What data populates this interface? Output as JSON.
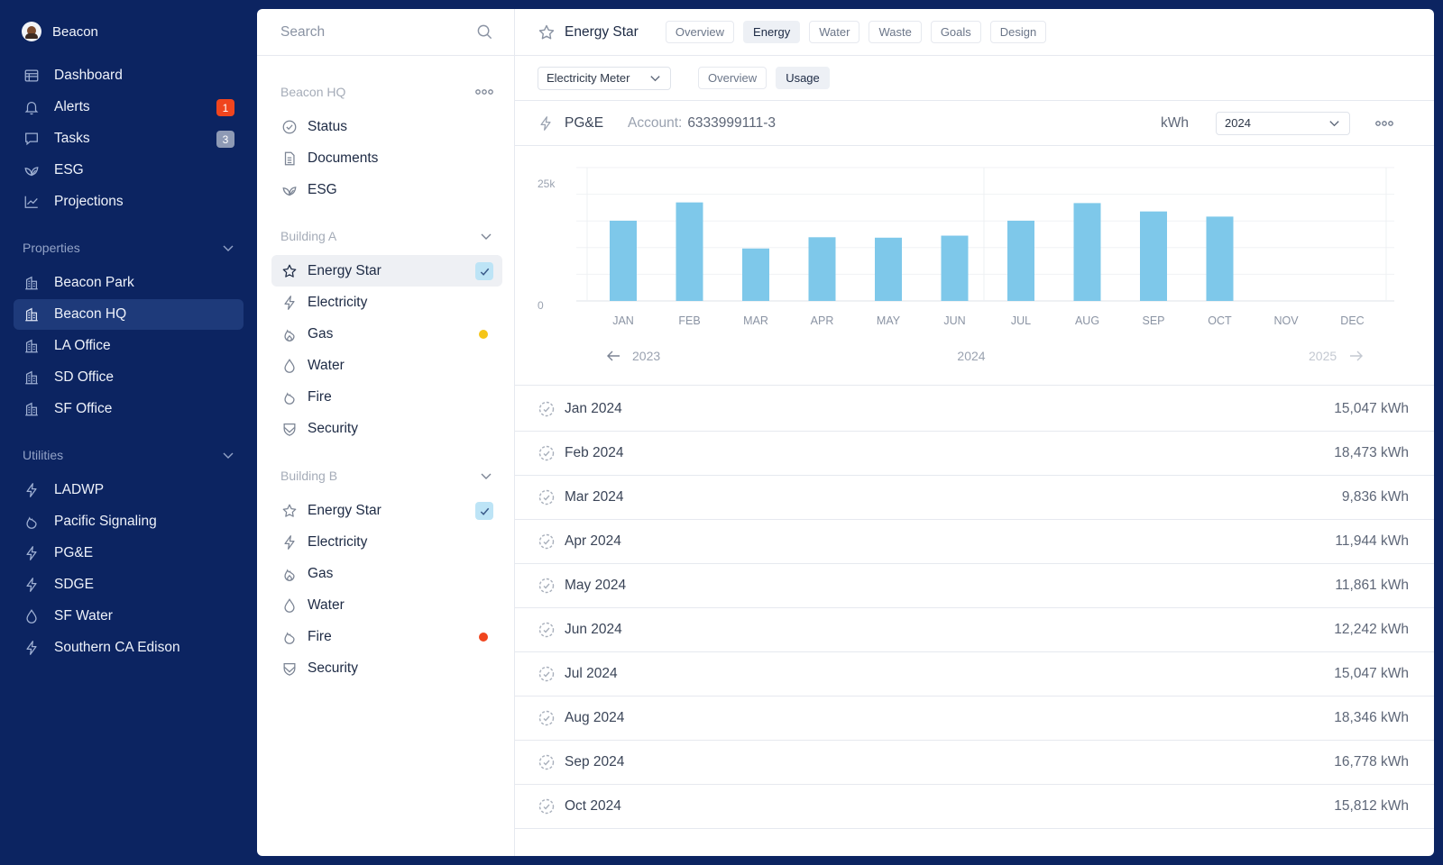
{
  "app": {
    "name": "Beacon"
  },
  "nav": {
    "items": [
      {
        "label": "Dashboard",
        "icon": "dashboard-icon"
      },
      {
        "label": "Alerts",
        "icon": "bell-icon",
        "badge": "1",
        "badge_color": "#f0451e"
      },
      {
        "label": "Tasks",
        "icon": "tasks-icon",
        "badge": "3",
        "badge_color": "#8e9ab5"
      },
      {
        "label": "ESG",
        "icon": "leaf-icon"
      },
      {
        "label": "Projections",
        "icon": "trend-icon"
      }
    ],
    "properties_label": "Properties",
    "properties": [
      {
        "label": "Beacon Park"
      },
      {
        "label": "Beacon HQ",
        "active": true
      },
      {
        "label": "LA Office"
      },
      {
        "label": "SD Office"
      },
      {
        "label": "SF Office"
      }
    ],
    "utilities_label": "Utilities",
    "utilities": [
      {
        "label": "LADWP",
        "icon": "bolt-icon"
      },
      {
        "label": "Pacific Signaling",
        "icon": "flame-icon"
      },
      {
        "label": "PG&E",
        "icon": "bolt-icon"
      },
      {
        "label": "SDGE",
        "icon": "bolt-icon"
      },
      {
        "label": "SF Water",
        "icon": "drop-icon"
      },
      {
        "label": "Southern CA Edison",
        "icon": "bolt-icon"
      }
    ]
  },
  "middle": {
    "search_placeholder": "Search",
    "hq": {
      "label": "Beacon HQ",
      "items": [
        {
          "label": "Status",
          "icon": "check-circle-icon"
        },
        {
          "label": "Documents",
          "icon": "document-icon"
        },
        {
          "label": "ESG",
          "icon": "leaf-icon"
        }
      ]
    },
    "building_a": {
      "label": "Building A",
      "items": [
        {
          "label": "Energy Star",
          "icon": "star-icon",
          "checked": true,
          "selected": true
        },
        {
          "label": "Electricity",
          "icon": "bolt-icon"
        },
        {
          "label": "Gas",
          "icon": "flame-icon",
          "dot": "#f5c518"
        },
        {
          "label": "Water",
          "icon": "drop-icon"
        },
        {
          "label": "Fire",
          "icon": "fire-icon"
        },
        {
          "label": "Security",
          "icon": "shield-icon"
        }
      ]
    },
    "building_b": {
      "label": "Building B",
      "items": [
        {
          "label": "Energy Star",
          "icon": "star-icon",
          "checked": true
        },
        {
          "label": "Electricity",
          "icon": "bolt-icon"
        },
        {
          "label": "Gas",
          "icon": "flame-icon"
        },
        {
          "label": "Water",
          "icon": "drop-icon"
        },
        {
          "label": "Fire",
          "icon": "fire-icon",
          "dot": "#f0451e"
        },
        {
          "label": "Security",
          "icon": "shield-icon"
        }
      ]
    }
  },
  "main": {
    "title": "Energy Star",
    "tabs": [
      {
        "label": "Overview"
      },
      {
        "label": "Energy",
        "active": true
      },
      {
        "label": "Water"
      },
      {
        "label": "Waste"
      },
      {
        "label": "Goals"
      },
      {
        "label": "Design"
      }
    ],
    "meter_select": "Electricity Meter",
    "subtabs": [
      {
        "label": "Overview"
      },
      {
        "label": "Usage",
        "active": true
      }
    ],
    "utility": "PG&E",
    "account_label": "Account:",
    "account_number": "6333999111-3",
    "unit": "kWh",
    "year_select": "2024",
    "prev_year": "2023",
    "current_year": "2024",
    "next_year": "2025"
  },
  "chart_data": {
    "type": "bar",
    "categories": [
      "JAN",
      "FEB",
      "MAR",
      "APR",
      "MAY",
      "JUN",
      "JUL",
      "AUG",
      "SEP",
      "OCT",
      "NOV",
      "DEC"
    ],
    "values": [
      15047,
      18473,
      9836,
      11944,
      11861,
      12242,
      15047,
      18346,
      16778,
      15812,
      null,
      null
    ],
    "ylim": [
      0,
      25000
    ],
    "yticks": [
      "0",
      "25k"
    ],
    "bar_color": "#7ec8ea",
    "grid": true
  },
  "usage": [
    {
      "month": "Jan 2024",
      "value": "15,047 kWh"
    },
    {
      "month": "Feb 2024",
      "value": "18,473 kWh"
    },
    {
      "month": "Mar 2024",
      "value": "9,836 kWh"
    },
    {
      "month": "Apr 2024",
      "value": "11,944 kWh"
    },
    {
      "month": "May 2024",
      "value": "11,861 kWh"
    },
    {
      "month": "Jun 2024",
      "value": "12,242 kWh"
    },
    {
      "month": "Jul 2024",
      "value": "15,047 kWh"
    },
    {
      "month": "Aug 2024",
      "value": "18,346 kWh"
    },
    {
      "month": "Sep 2024",
      "value": "16,778 kWh"
    },
    {
      "month": "Oct 2024",
      "value": "15,812 kWh"
    }
  ]
}
